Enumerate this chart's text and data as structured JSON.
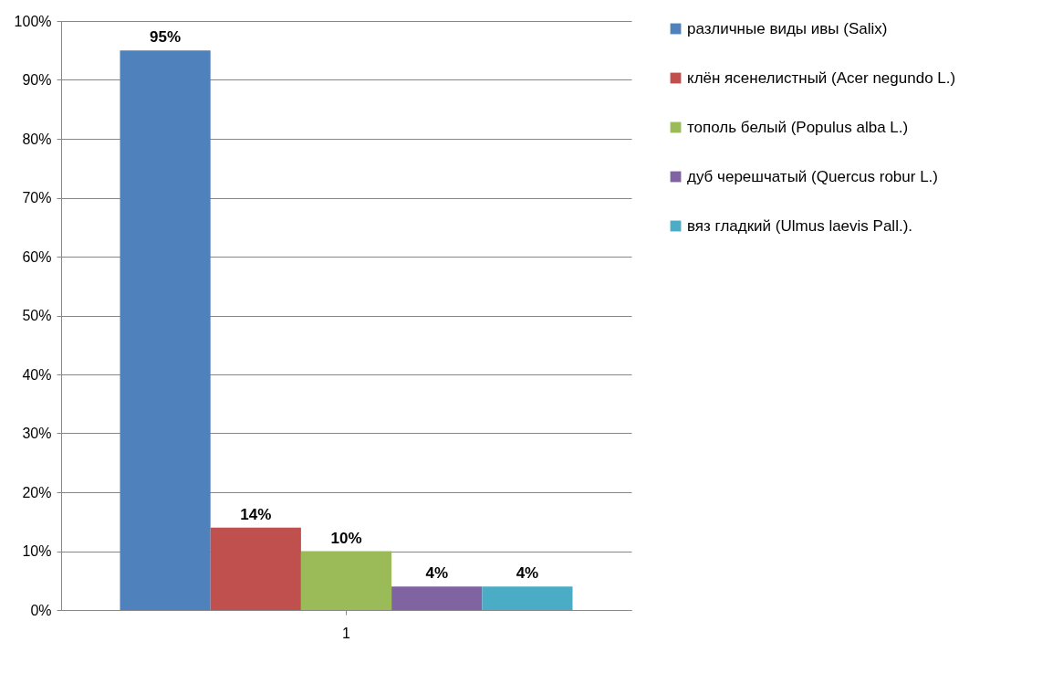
{
  "chart_data": {
    "type": "bar",
    "categories": [
      "1"
    ],
    "series": [
      {
        "name": "различные виды ивы (Salix)",
        "color": "#4f81bd",
        "values": [
          95
        ],
        "value_labels": [
          "95%"
        ]
      },
      {
        "name": "клён ясенелистный (Acer negundo L.)",
        "color": "#c0504d",
        "values": [
          14
        ],
        "value_labels": [
          "14%"
        ]
      },
      {
        "name": "тополь белый (Populus alba L.)",
        "color": "#9bbb59",
        "values": [
          10
        ],
        "value_labels": [
          "10%"
        ]
      },
      {
        "name": "дуб черешчатый (Quercus robur L.)",
        "color": "#8064a2",
        "values": [
          4
        ],
        "value_labels": [
          "4%"
        ]
      },
      {
        "name": "вяз гладкий (Ulmus laevis Pall.).",
        "color": "#4bacc6",
        "values": [
          4
        ],
        "value_labels": [
          "4%"
        ]
      }
    ],
    "ylim": [
      0,
      100
    ],
    "yticks": [
      {
        "value": 0,
        "label": "0%"
      },
      {
        "value": 10,
        "label": "10%"
      },
      {
        "value": 20,
        "label": "20%"
      },
      {
        "value": 30,
        "label": "30%"
      },
      {
        "value": 40,
        "label": "40%"
      },
      {
        "value": 50,
        "label": "50%"
      },
      {
        "value": 60,
        "label": "60%"
      },
      {
        "value": 70,
        "label": "70%"
      },
      {
        "value": 80,
        "label": "80%"
      },
      {
        "value": 90,
        "label": "90%"
      },
      {
        "value": 100,
        "label": "100%"
      }
    ],
    "grid": "y",
    "legend": "right"
  }
}
